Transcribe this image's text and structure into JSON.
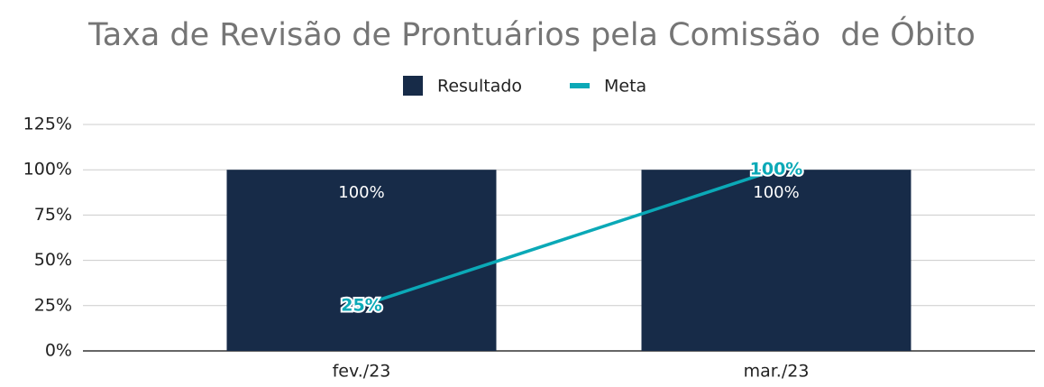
{
  "chart_data": {
    "type": "bar_line",
    "title": "Taxa de Revisão de Prontuários pela Comissão  de Óbito",
    "categories": [
      "fev./23",
      "mar./23"
    ],
    "series": [
      {
        "name": "Resultado",
        "type": "bar",
        "color": "#172b48",
        "values": [
          100,
          100
        ],
        "value_labels": [
          "100%",
          "100%"
        ]
      },
      {
        "name": "Meta",
        "type": "line",
        "color": "#0ba9b7",
        "values": [
          25,
          100
        ],
        "value_labels": [
          "25%",
          "100%"
        ]
      }
    ],
    "ylim": [
      0,
      125
    ],
    "yticks": [
      {
        "value": 0,
        "label": "0%"
      },
      {
        "value": 25,
        "label": "25%"
      },
      {
        "value": 50,
        "label": "50%"
      },
      {
        "value": 75,
        "label": "75%"
      },
      {
        "value": 100,
        "label": "100%"
      },
      {
        "value": 125,
        "label": "125%"
      }
    ],
    "grid": true,
    "legend": "top"
  }
}
